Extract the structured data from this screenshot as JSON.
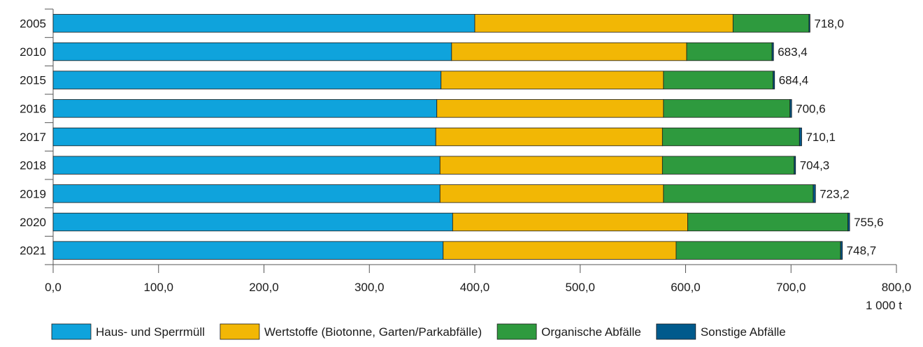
{
  "chart_data": {
    "type": "bar",
    "orientation": "horizontal",
    "stacked": true,
    "categories": [
      "2005",
      "2010",
      "2015",
      "2016",
      "2017",
      "2018",
      "2019",
      "2020",
      "2021"
    ],
    "series": [
      {
        "name": "Haus- und Sperrmüll",
        "color": "#0fa3dc",
        "values": [
          400,
          378,
          368,
          364,
          363,
          367,
          367,
          379,
          370
        ]
      },
      {
        "name": "Wertstoffe (Biotonne, Garten/Parkabfälle)",
        "color": "#f2b705",
        "values": [
          245,
          223,
          211,
          215,
          215,
          211,
          212,
          223,
          221
        ]
      },
      {
        "name": "Organische Abfälle",
        "color": "#2e9a3e",
        "values": [
          72,
          81,
          104,
          120,
          130,
          125,
          142,
          152,
          156
        ]
      },
      {
        "name": "Sonstige Abfälle",
        "color": "#005a8c",
        "values": [
          1,
          1.4,
          1.4,
          1.6,
          2.1,
          1.3,
          2.2,
          1.6,
          1.7
        ]
      }
    ],
    "totals": [
      "718,0",
      "683,4",
      "684,4",
      "700,6",
      "710,1",
      "704,3",
      "723,2",
      "755,6",
      "748,7"
    ],
    "xlim": [
      0,
      800
    ],
    "xticks": [
      0,
      100,
      200,
      300,
      400,
      500,
      600,
      700,
      800
    ],
    "xtick_labels": [
      "0,0",
      "100,0",
      "200,0",
      "300,0",
      "400,0",
      "500,0",
      "600,0",
      "700,0",
      "800,0"
    ],
    "unit_label": "1 000 t",
    "grid": false,
    "legend_position": "bottom"
  }
}
